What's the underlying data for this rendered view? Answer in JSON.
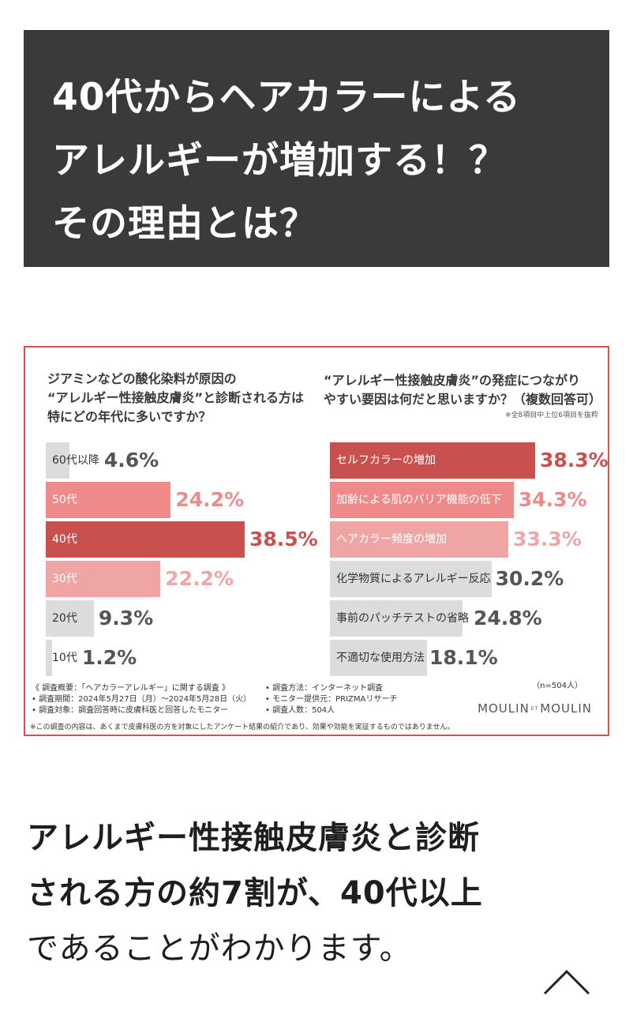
{
  "hero": {
    "lines": [
      "40代からヘアカラーによる",
      "アレルギーが増加する！？",
      "その理由とは？"
    ]
  },
  "chart_data": [
    {
      "type": "bar",
      "orientation": "horizontal",
      "title": "ジアミンなどの酸化染料が原因の“アレルギー性接触皮膚炎”と診断される方は特にどの年代に多いですか？",
      "title_lines": [
        "ジアミンなどの酸化染料が原因の",
        "“アレルギー性接触皮膚炎”と診断される方は",
        "特にどの年代に多いですか？"
      ],
      "categories": [
        "60代以降",
        "50代",
        "40代",
        "30代",
        "20代",
        "10代"
      ],
      "values": [
        4.6,
        24.2,
        38.5,
        22.2,
        9.3,
        1.2
      ],
      "value_labels": [
        "4.6%",
        "24.2%",
        "38.5%",
        "22.2%",
        "9.3%",
        "1.2%"
      ],
      "colors": [
        "#dcdcdc",
        "#ef8a8a",
        "#c8514f",
        "#f0a5a5",
        "#dcdcdc",
        "#dcdcdc"
      ],
      "value_colors": [
        "#555555",
        "#ef8a8a",
        "#c8514f",
        "#f0a5a5",
        "#555555",
        "#555555"
      ],
      "xlim": [
        0,
        38.5
      ]
    },
    {
      "type": "bar",
      "orientation": "horizontal",
      "title": "“アレルギー性接触皮膚炎”の発症につながりやすい要因は何だと思いますか？（複数回答可）",
      "title_lines": [
        "“アレルギー性接触皮膚炎”の発症につながり",
        "やすい要因は何だと思いますか？（複数回答可）"
      ],
      "note": "※全8項目中上位6項目を抜粋",
      "categories": [
        "セルフカラーの増加",
        "加齢による肌のバリア機能の低下",
        "ヘアカラー頻度の増加",
        "化学物質によるアレルギー反応",
        "事前のパッチテストの省略",
        "不適切な使用方法"
      ],
      "values": [
        38.3,
        34.3,
        33.3,
        30.2,
        24.8,
        18.1
      ],
      "value_labels": [
        "38.3%",
        "34.3%",
        "33.3%",
        "30.2%",
        "24.8%",
        "18.1%"
      ],
      "colors": [
        "#c8514f",
        "#ef8a8a",
        "#f0a5a5",
        "#dcdcdc",
        "#dcdcdc",
        "#dcdcdc"
      ],
      "value_colors": [
        "#c8514f",
        "#ef8a8a",
        "#f0a5a5",
        "#555555",
        "#555555",
        "#555555"
      ],
      "xlim": [
        0,
        38.3
      ]
    }
  ],
  "footnote": {
    "left": [
      "《 調査概要：「ヘアカラーアレルギー」に関する調査 》",
      "• 調査期間：2024年5月27日（月）〜2024年5月28日（火）",
      "• 調査対象：調査回答時に皮膚科医と回答したモニター"
    ],
    "right": [
      "• 調査方法：インターネット調査",
      "• モニター提供元：PRIZMAリサーチ",
      "• 調査人数：504人"
    ],
    "sample": "（n=504人）",
    "disclaimer": "※この調査の内容は、あくまで皮膚科医の方を対象にしたアンケート結果の紹介であり、効果や効能を実証するものではありません。",
    "logo_left": "MOULIN",
    "logo_et": "ET",
    "logo_right": "MOULIN"
  },
  "body": {
    "lines": [
      "アレルギー性接触皮膚炎と診断",
      "される方の約7割が、40代以上",
      "であることがわかります。"
    ]
  },
  "icons": {
    "scroll_top": "chevron-up-icon"
  }
}
